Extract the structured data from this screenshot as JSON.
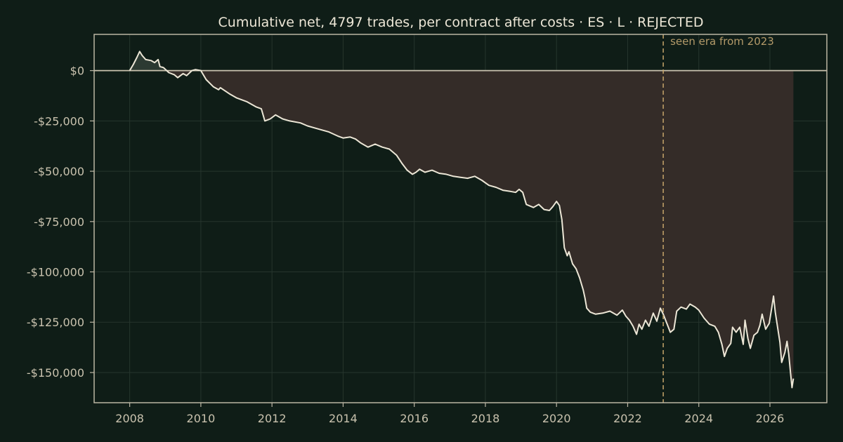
{
  "chart_data": {
    "type": "line",
    "title": "Cumulative net, 4797 trades, per contract after costs  ·  ES · L · REJECTED",
    "xlabel": "",
    "ylabel": "",
    "xlim": [
      2007.0,
      2027.6
    ],
    "ylim": [
      -165000,
      18000
    ],
    "x_ticks": [
      2008,
      2010,
      2012,
      2014,
      2016,
      2018,
      2020,
      2022,
      2024,
      2026
    ],
    "y_ticks": [
      {
        "value": 0,
        "label": "$0"
      },
      {
        "value": -25000,
        "label": "-$25,000"
      },
      {
        "value": -50000,
        "label": "-$50,000"
      },
      {
        "value": -75000,
        "label": "-$75,000"
      },
      {
        "value": -100000,
        "label": "-$100,000"
      },
      {
        "value": -125000,
        "label": "-$125,000"
      },
      {
        "value": -150000,
        "label": "-$150,000"
      }
    ],
    "grid": true,
    "zero_line": true,
    "fill_to_zero": true,
    "annotation": {
      "x": 2023.0,
      "label": "seen era from 2023"
    },
    "colors": {
      "background": "#0f1d17",
      "line": "#ece6d6",
      "fill_below": "#342c28",
      "fill_above": "#2c3a32",
      "grid": "#26352d",
      "axis": "#bcb6a4",
      "zero_line": "#c9c2ae",
      "annotation": "#c6a56a"
    },
    "series": [
      {
        "values": [
          [
            2008.0,
            0
          ],
          [
            2008.1,
            3000
          ],
          [
            2008.2,
            6500
          ],
          [
            2008.28,
            9500
          ],
          [
            2008.35,
            7500
          ],
          [
            2008.45,
            5500
          ],
          [
            2008.6,
            5000
          ],
          [
            2008.7,
            4000
          ],
          [
            2008.8,
            5500
          ],
          [
            2008.85,
            2000
          ],
          [
            2008.95,
            1500
          ],
          [
            2009.1,
            -1000
          ],
          [
            2009.25,
            -2000
          ],
          [
            2009.35,
            -3500
          ],
          [
            2009.5,
            -1500
          ],
          [
            2009.6,
            -2500
          ],
          [
            2009.75,
            0
          ],
          [
            2009.85,
            500
          ],
          [
            2010.0,
            0
          ],
          [
            2010.15,
            -4500
          ],
          [
            2010.35,
            -8000
          ],
          [
            2010.5,
            -9500
          ],
          [
            2010.55,
            -8500
          ],
          [
            2010.8,
            -11500
          ],
          [
            2011.0,
            -13500
          ],
          [
            2011.3,
            -15500
          ],
          [
            2011.55,
            -18000
          ],
          [
            2011.7,
            -19000
          ],
          [
            2011.8,
            -25000
          ],
          [
            2011.95,
            -24000
          ],
          [
            2012.1,
            -22000
          ],
          [
            2012.3,
            -24000
          ],
          [
            2012.5,
            -25000
          ],
          [
            2012.8,
            -26000
          ],
          [
            2013.0,
            -27500
          ],
          [
            2013.3,
            -29000
          ],
          [
            2013.6,
            -30500
          ],
          [
            2013.85,
            -32500
          ],
          [
            2014.0,
            -33500
          ],
          [
            2014.2,
            -33000
          ],
          [
            2014.35,
            -34000
          ],
          [
            2014.5,
            -36000
          ],
          [
            2014.7,
            -38000
          ],
          [
            2014.9,
            -36500
          ],
          [
            2015.1,
            -38000
          ],
          [
            2015.3,
            -39000
          ],
          [
            2015.5,
            -42000
          ],
          [
            2015.65,
            -46000
          ],
          [
            2015.8,
            -49500
          ],
          [
            2015.95,
            -51500
          ],
          [
            2016.05,
            -50500
          ],
          [
            2016.15,
            -49000
          ],
          [
            2016.3,
            -50500
          ],
          [
            2016.5,
            -49500
          ],
          [
            2016.7,
            -51000
          ],
          [
            2016.9,
            -51500
          ],
          [
            2017.1,
            -52500
          ],
          [
            2017.3,
            -53000
          ],
          [
            2017.5,
            -53500
          ],
          [
            2017.7,
            -52500
          ],
          [
            2017.9,
            -54500
          ],
          [
            2018.1,
            -57000
          ],
          [
            2018.3,
            -58000
          ],
          [
            2018.5,
            -59500
          ],
          [
            2018.7,
            -60000
          ],
          [
            2018.85,
            -60500
          ],
          [
            2018.95,
            -59000
          ],
          [
            2019.05,
            -60500
          ],
          [
            2019.15,
            -66500
          ],
          [
            2019.35,
            -68000
          ],
          [
            2019.5,
            -66500
          ],
          [
            2019.65,
            -69000
          ],
          [
            2019.8,
            -69500
          ],
          [
            2019.9,
            -67500
          ],
          [
            2020.0,
            -65000
          ],
          [
            2020.08,
            -67000
          ],
          [
            2020.15,
            -74000
          ],
          [
            2020.22,
            -88000
          ],
          [
            2020.3,
            -92000
          ],
          [
            2020.35,
            -90000
          ],
          [
            2020.45,
            -96000
          ],
          [
            2020.55,
            -98500
          ],
          [
            2020.65,
            -103000
          ],
          [
            2020.75,
            -109000
          ],
          [
            2020.8,
            -113000
          ],
          [
            2020.85,
            -118000
          ],
          [
            2020.95,
            -120000
          ],
          [
            2021.1,
            -121000
          ],
          [
            2021.3,
            -120500
          ],
          [
            2021.5,
            -119500
          ],
          [
            2021.7,
            -121500
          ],
          [
            2021.85,
            -119000
          ],
          [
            2021.95,
            -122000
          ],
          [
            2022.05,
            -124000
          ],
          [
            2022.15,
            -127000
          ],
          [
            2022.25,
            -131000
          ],
          [
            2022.32,
            -126000
          ],
          [
            2022.4,
            -128500
          ],
          [
            2022.5,
            -124000
          ],
          [
            2022.6,
            -127000
          ],
          [
            2022.72,
            -120500
          ],
          [
            2022.82,
            -124500
          ],
          [
            2022.92,
            -118000
          ],
          [
            2023.0,
            -121000
          ],
          [
            2023.1,
            -125500
          ],
          [
            2023.2,
            -130000
          ],
          [
            2023.3,
            -128500
          ],
          [
            2023.38,
            -119500
          ],
          [
            2023.5,
            -117500
          ],
          [
            2023.65,
            -118500
          ],
          [
            2023.75,
            -116000
          ],
          [
            2023.9,
            -117500
          ],
          [
            2024.0,
            -119000
          ],
          [
            2024.15,
            -123000
          ],
          [
            2024.3,
            -126000
          ],
          [
            2024.45,
            -127000
          ],
          [
            2024.55,
            -130000
          ],
          [
            2024.65,
            -136000
          ],
          [
            2024.72,
            -142000
          ],
          [
            2024.8,
            -138000
          ],
          [
            2024.9,
            -135500
          ],
          [
            2024.95,
            -127500
          ],
          [
            2025.05,
            -130000
          ],
          [
            2025.15,
            -127500
          ],
          [
            2025.25,
            -136000
          ],
          [
            2025.3,
            -124000
          ],
          [
            2025.38,
            -133000
          ],
          [
            2025.45,
            -138000
          ],
          [
            2025.55,
            -131500
          ],
          [
            2025.65,
            -130000
          ],
          [
            2025.72,
            -126500
          ],
          [
            2025.78,
            -121000
          ],
          [
            2025.88,
            -128500
          ],
          [
            2025.98,
            -125500
          ],
          [
            2026.05,
            -118000
          ],
          [
            2026.1,
            -112000
          ],
          [
            2026.15,
            -120000
          ],
          [
            2026.22,
            -128000
          ],
          [
            2026.28,
            -135000
          ],
          [
            2026.33,
            -145000
          ],
          [
            2026.42,
            -140000
          ],
          [
            2026.48,
            -134500
          ],
          [
            2026.53,
            -141000
          ],
          [
            2026.58,
            -150500
          ],
          [
            2026.62,
            -157500
          ],
          [
            2026.66,
            -153000
          ]
        ]
      }
    ]
  }
}
